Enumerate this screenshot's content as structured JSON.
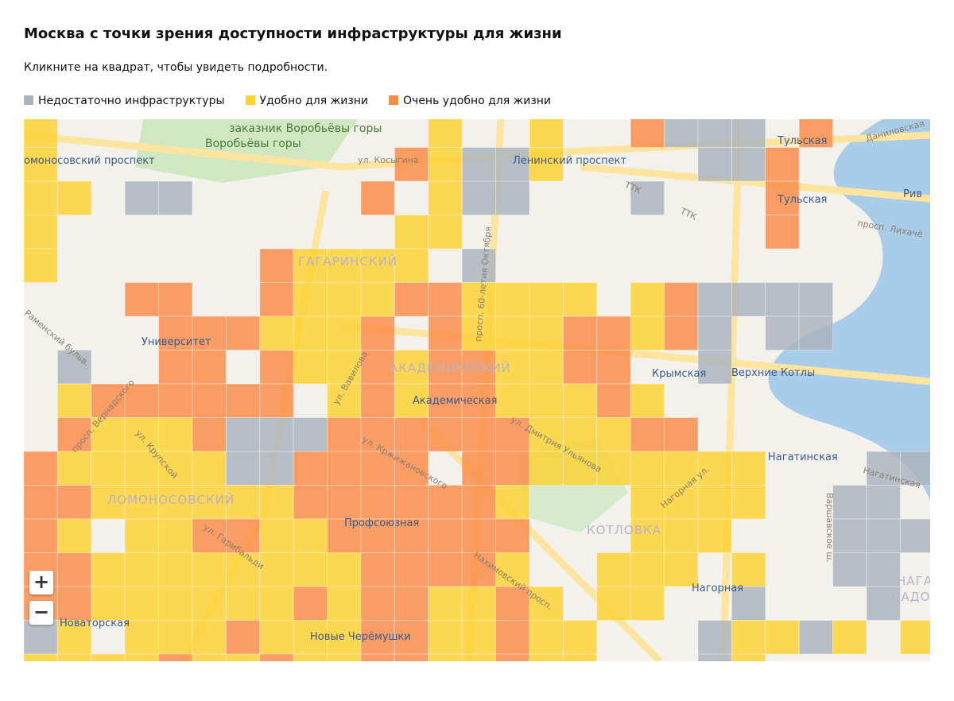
{
  "header": {
    "title": "Москва с точки зрения доступности инфраструктуры для жизни",
    "subtitle": "Кликните на квадрат, чтобы увидеть подробности."
  },
  "legend": [
    {
      "label": "Недостаточно инфраструктуры",
      "color": "#aab2bc"
    },
    {
      "label": "Удобно для жизни",
      "color": "#fdd12f"
    },
    {
      "label": "Очень удобно для жизни",
      "color": "#fb8a45"
    }
  ],
  "zoom": {
    "in": "+",
    "out": "−"
  },
  "map_labels": {
    "districts": [
      "ГАГАРИНСКИЙ",
      "АКАДЕМИЧЕСКИЙ",
      "ЛОМОНОСОВСКИЙ",
      "КОТЛОВКА",
      "НАГА",
      "САДО"
    ],
    "stations": [
      "Университет",
      "Академическая",
      "Профсоюзная",
      "Крымская",
      "Верхние Котлы",
      "Нагатинская",
      "Нагорная",
      "Новаторская",
      "Тульская",
      "Тульская",
      "Ленинский проспект",
      "омоносовский проспект",
      "Новые Черёмушки",
      "Рив"
    ],
    "places": [
      "заказник Воробьёвы горы",
      "Воробьёвы горы"
    ],
    "streets": [
      "ул. Косыгина",
      "ТТК",
      "ТТК",
      "просп. 60-летия Октября",
      "ул. Вавилова",
      "ул. Дмитрия Ульянова",
      "ул. Кржижановского",
      "Нахимовский просп.",
      "ул. Гарибальди",
      "ул. Крупской",
      "просп. Вернадского",
      "Нагорная ул.",
      "Варшавское ш.",
      "Нагатинская",
      "просп. Лихачё",
      "Даниловская",
      "Раменский бульв."
    ]
  }
}
